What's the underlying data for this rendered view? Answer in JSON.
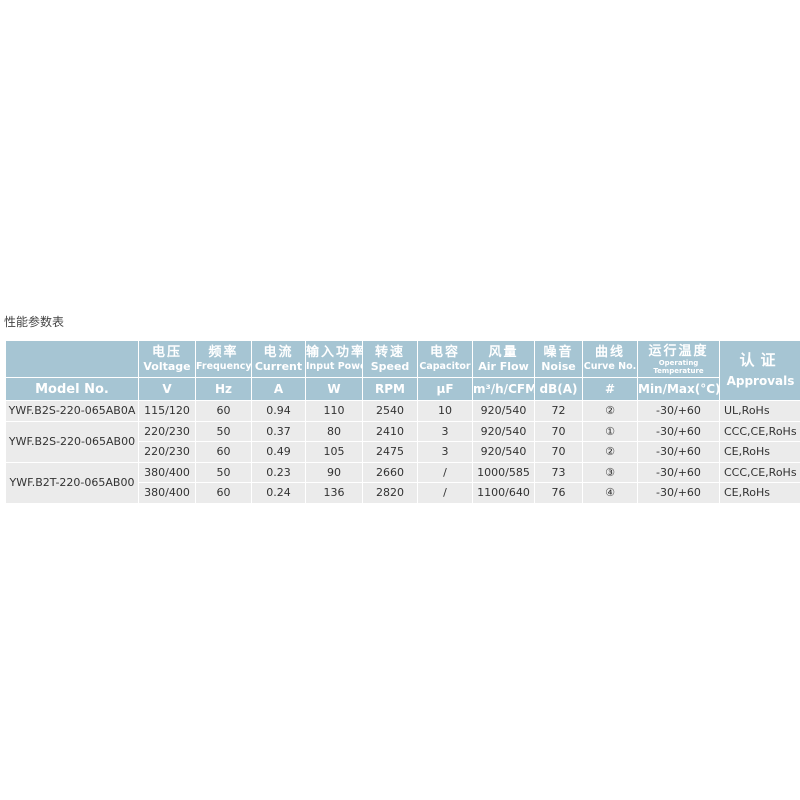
{
  "title": "性能参数表",
  "header": {
    "model": "Model No.",
    "columns": [
      {
        "cn": "电压",
        "en": "Voltage",
        "unit": "V"
      },
      {
        "cn": "频率",
        "en": "Frequency",
        "unit": "Hz"
      },
      {
        "cn": "电流",
        "en": "Current",
        "unit": "A"
      },
      {
        "cn": "输入功率",
        "en": "Input Power",
        "unit": "W"
      },
      {
        "cn": "转速",
        "en": "Speed",
        "unit": "RPM"
      },
      {
        "cn": "电容",
        "en": "Capacitor",
        "unit": "μF"
      },
      {
        "cn": "风量",
        "en": "Air Flow",
        "unit": "m³/h/CFM"
      },
      {
        "cn": "噪音",
        "en": "Noise",
        "unit": "dB(A)"
      },
      {
        "cn": "曲线",
        "en": "Curve No.",
        "unit": "#"
      },
      {
        "cn": "运行温度",
        "en1": "Operating",
        "en2": "Temperature",
        "unit": "Min/Max(°C)"
      }
    ],
    "approvals": {
      "cn": "认证",
      "en": "Approvals"
    }
  },
  "models": [
    "YWF.B2S-220-065AB0A",
    "YWF.B2S-220-065AB00",
    "YWF.B2T-220-065AB00"
  ],
  "rows": [
    [
      "115/120",
      "60",
      "0.94",
      "110",
      "2540",
      "10",
      "920/540",
      "72",
      "②",
      "-30/+60",
      "UL,RoHs"
    ],
    [
      "220/230",
      "50",
      "0.37",
      "80",
      "2410",
      "3",
      "920/540",
      "70",
      "①",
      "-30/+60",
      "CCC,CE,RoHs"
    ],
    [
      "220/230",
      "60",
      "0.49",
      "105",
      "2475",
      "3",
      "920/540",
      "70",
      "②",
      "-30/+60",
      "CE,RoHs"
    ],
    [
      "380/400",
      "50",
      "0.23",
      "90",
      "2660",
      "/",
      "1000/585",
      "73",
      "③",
      "-30/+60",
      "CCC,CE,RoHs"
    ],
    [
      "380/400",
      "60",
      "0.24",
      "136",
      "2820",
      "/",
      "1100/640",
      "76",
      "④",
      "-30/+60",
      "CE,RoHs"
    ]
  ]
}
